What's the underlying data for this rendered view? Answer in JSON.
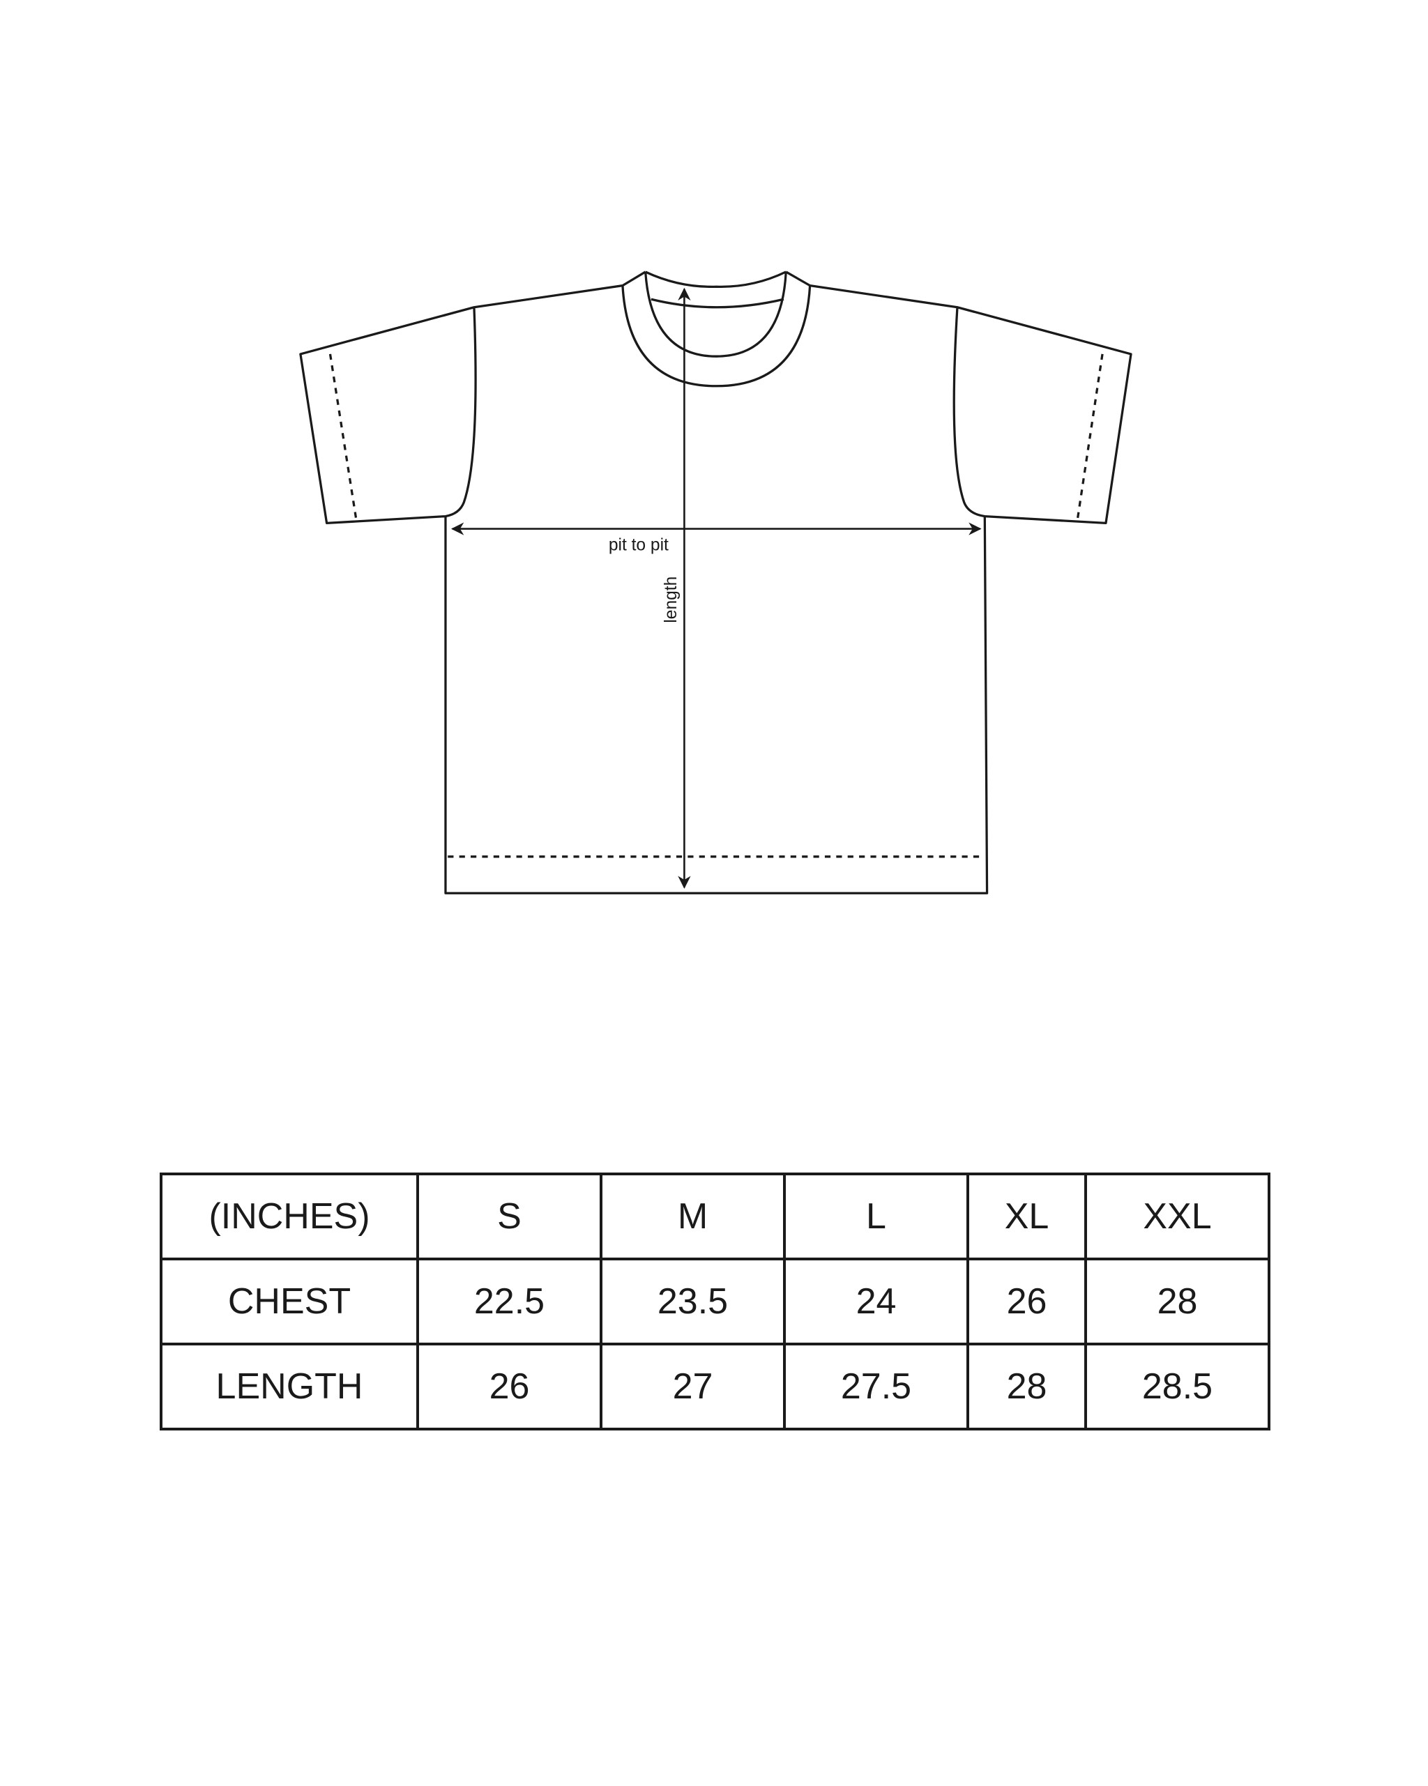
{
  "diagram": {
    "pit_to_pit_label": "pit to pit",
    "length_label": "length",
    "line_color": "#1a1a1a"
  },
  "table": {
    "header": [
      "(INCHES)",
      "S",
      "M",
      "L",
      "XL",
      "XXL"
    ],
    "rows": [
      {
        "label": "CHEST",
        "values": [
          "22.5",
          "23.5",
          "24",
          "26",
          "28"
        ]
      },
      {
        "label": "LENGTH",
        "values": [
          "26",
          "27",
          "27.5",
          "28",
          "28.5"
        ]
      }
    ]
  }
}
